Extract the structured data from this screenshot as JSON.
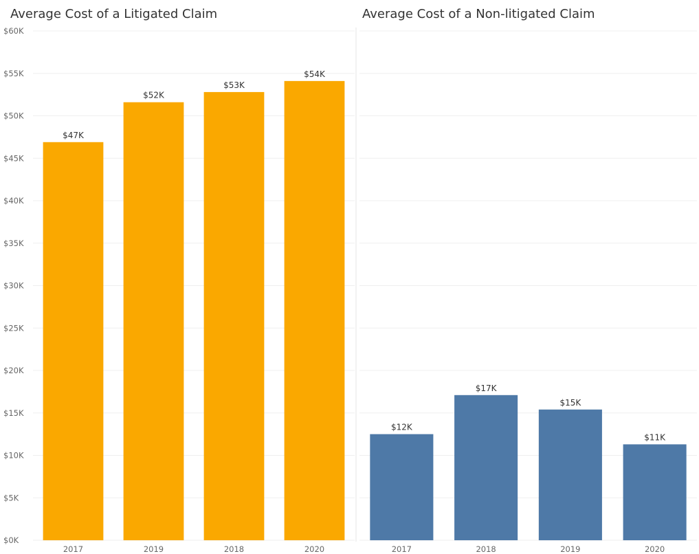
{
  "chart_data": [
    {
      "type": "bar",
      "title": "Average Cost of a Litigated Claim",
      "categories": [
        "2017",
        "2019",
        "2018",
        "2020"
      ],
      "values": [
        46900,
        51600,
        52800,
        54100
      ],
      "data_labels": [
        "$47K",
        "$52K",
        "$53K",
        "$54K"
      ],
      "color": "#FAA800",
      "ylim": [
        0,
        60000
      ],
      "y_ticks": [
        "$0K",
        "$5K",
        "$10K",
        "$15K",
        "$20K",
        "$25K",
        "$30K",
        "$35K",
        "$40K",
        "$45K",
        "$50K",
        "$55K",
        "$60K"
      ],
      "grid": true
    },
    {
      "type": "bar",
      "title": "Average Cost of a Non-litigated Claim",
      "categories": [
        "2017",
        "2018",
        "2019",
        "2020"
      ],
      "values": [
        12500,
        17100,
        15400,
        11300
      ],
      "data_labels": [
        "$12K",
        "$17K",
        "$15K",
        "$11K"
      ],
      "color": "#4E79A7",
      "ylim": [
        0,
        60000
      ],
      "grid": true
    }
  ]
}
